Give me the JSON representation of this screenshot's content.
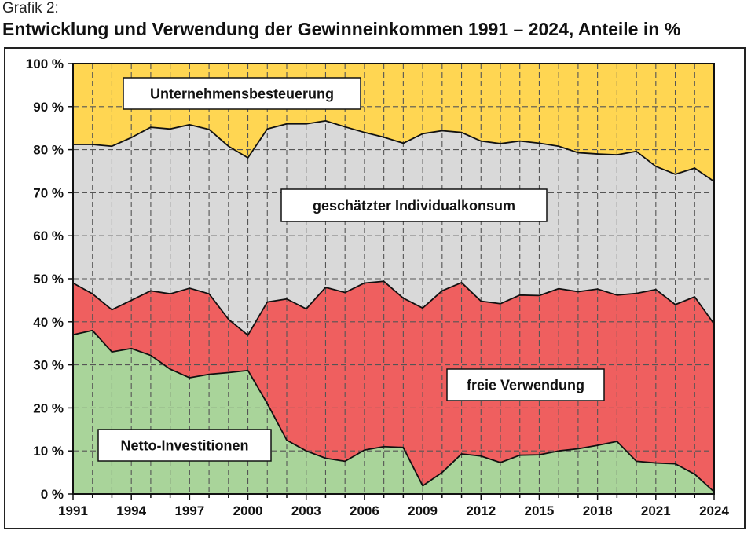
{
  "header": {
    "pretitle": "Grafik 2:",
    "title": "Entwicklung und Verwendung der Gewinneinkommen 1991 – 2024, Anteile in %"
  },
  "colors": {
    "netto": "#a9d49a",
    "frei": "#ef5f5f",
    "konsum": "#d9d9d9",
    "steuer": "#ffd652",
    "line": "#111111",
    "grid": "#555555"
  },
  "chart_data": {
    "type": "area",
    "title": "Entwicklung und Verwendung der Gewinneinkommen 1991 – 2024, Anteile in %",
    "xlabel": "",
    "ylabel": "",
    "xlim": [
      1991,
      2024
    ],
    "ylim": [
      0,
      100
    ],
    "grid": true,
    "stacked": true,
    "x": [
      1991,
      1992,
      1993,
      1994,
      1995,
      1996,
      1997,
      1998,
      1999,
      2000,
      2001,
      2002,
      2003,
      2004,
      2005,
      2006,
      2007,
      2008,
      2009,
      2010,
      2011,
      2012,
      2013,
      2014,
      2015,
      2016,
      2017,
      2018,
      2019,
      2020,
      2021,
      2022,
      2023,
      2024
    ],
    "x_ticks": [
      "1991",
      "1994",
      "1997",
      "2000",
      "2003",
      "2006",
      "2009",
      "2012",
      "2015",
      "2018",
      "2021",
      "2024"
    ],
    "y_ticks": [
      "0 %",
      "10 %",
      "20 %",
      "30 %",
      "40 %",
      "50 %",
      "60 %",
      "70 %",
      "80 %",
      "90 %",
      "100 %"
    ],
    "series": [
      {
        "name": "Netto-Investitionen",
        "values": [
          37,
          38,
          33,
          33.8,
          32.2,
          29,
          27,
          27.8,
          28.2,
          28.7,
          21,
          12.5,
          10,
          8.3,
          7.6,
          10.2,
          11,
          10.8,
          1.9,
          5,
          9.3,
          8.8,
          7.3,
          9,
          9.1,
          10,
          10.5,
          11.3,
          12.2,
          7.6,
          7.2,
          7,
          4.6,
          0.5
        ]
      },
      {
        "name": "freie Verwendung",
        "values": [
          12,
          8.5,
          9.8,
          11.2,
          15,
          17.5,
          20.8,
          18.7,
          12.4,
          8.2,
          23.6,
          32.8,
          33,
          39.7,
          39.2,
          38.8,
          38.4,
          34.7,
          41.3,
          42.2,
          39.8,
          36,
          36.9,
          37.2,
          37,
          37.7,
          36.5,
          36.3,
          34,
          39,
          40.3,
          37,
          41.2,
          39
        ]
      },
      {
        "name": "geschätzter Individualkonsum",
        "values": [
          32.2,
          34.7,
          38,
          37.8,
          38,
          38.3,
          38,
          38.2,
          40.2,
          41.2,
          40.2,
          40.7,
          43,
          38.7,
          38.5,
          35,
          33.5,
          36,
          40.5,
          37.2,
          34.9,
          37.2,
          37.2,
          35.8,
          35.4,
          33.1,
          32.3,
          31.4,
          32.6,
          33,
          28.6,
          30.3,
          29.9,
          33.1
        ]
      },
      {
        "name": "Unternehmensbesteuerung",
        "values": [
          18.8,
          18.8,
          19.2,
          17.2,
          14.8,
          15.2,
          14.2,
          15.3,
          19.2,
          21.9,
          15.2,
          14,
          14,
          13.3,
          14.7,
          16,
          17.1,
          18.5,
          16.3,
          15.6,
          16,
          18,
          18.6,
          18,
          18.5,
          19.2,
          20.7,
          21,
          21.2,
          20.4,
          23.9,
          25.7,
          24.3,
          27.4
        ]
      }
    ]
  }
}
